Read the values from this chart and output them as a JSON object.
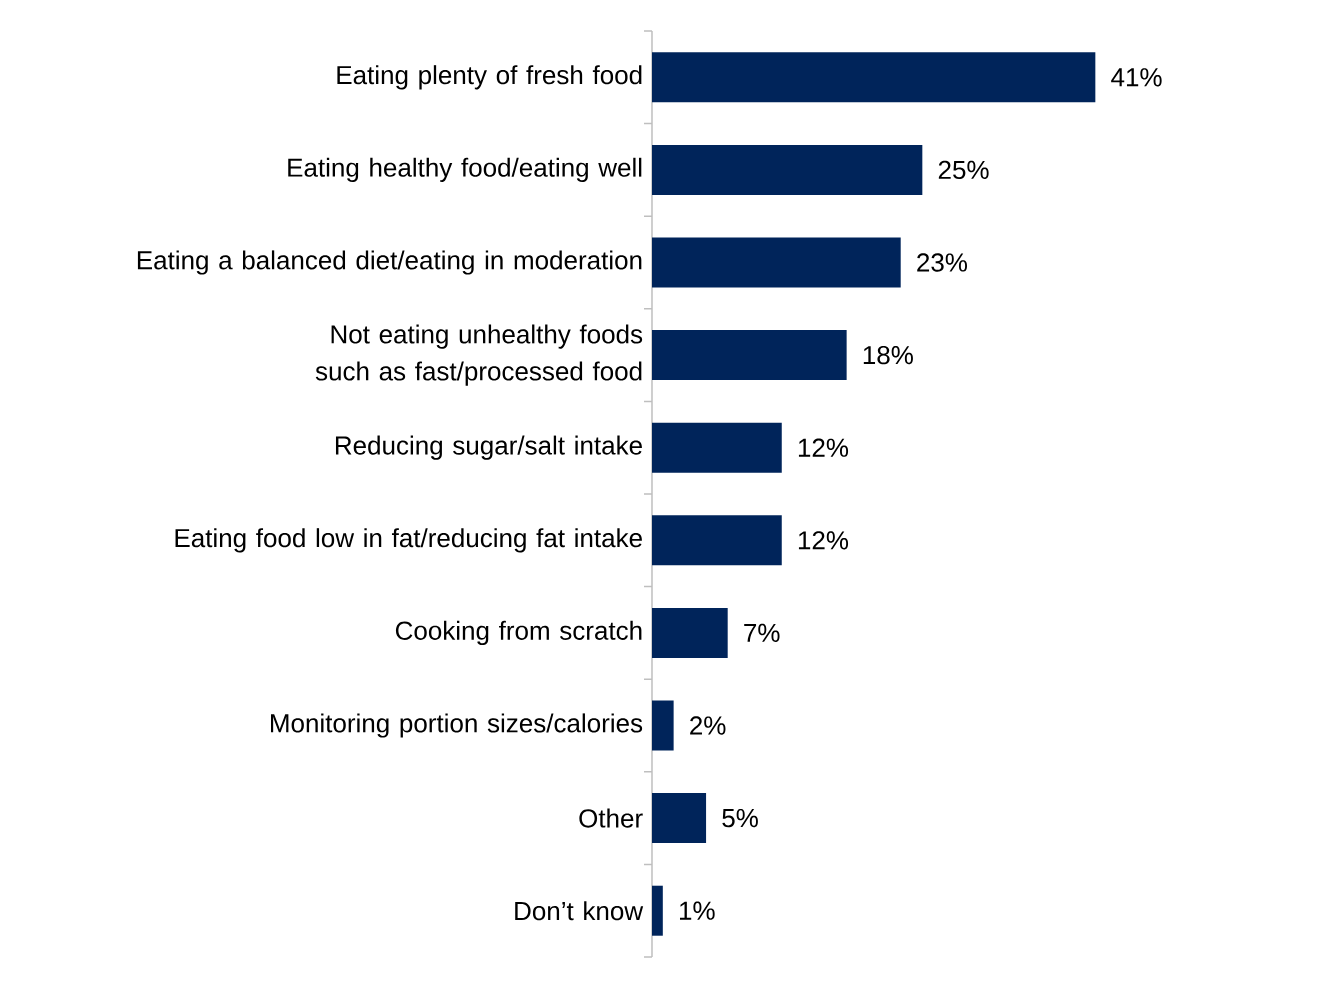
{
  "chart_data": {
    "type": "bar",
    "orientation": "horizontal",
    "color": "#00245a",
    "categories": [
      "Eating plenty of fresh food",
      "Eating healthy food/eating well",
      "Eating a balanced diet/eating in moderation",
      "Not eating unhealthy foods such as fast/processed food",
      "Reducing sugar/salt intake",
      "Eating food low in fat/reducing fat intake",
      "Cooking from scratch",
      "Monitoring portion sizes/calories",
      "Other",
      "Don’t know"
    ],
    "values": [
      41,
      25,
      23,
      18,
      12,
      12,
      7,
      2,
      5,
      1
    ],
    "value_labels": [
      "41%",
      "25%",
      "23%",
      "18%",
      "12%",
      "12%",
      "7%",
      "2%",
      "5%",
      "1%"
    ]
  }
}
